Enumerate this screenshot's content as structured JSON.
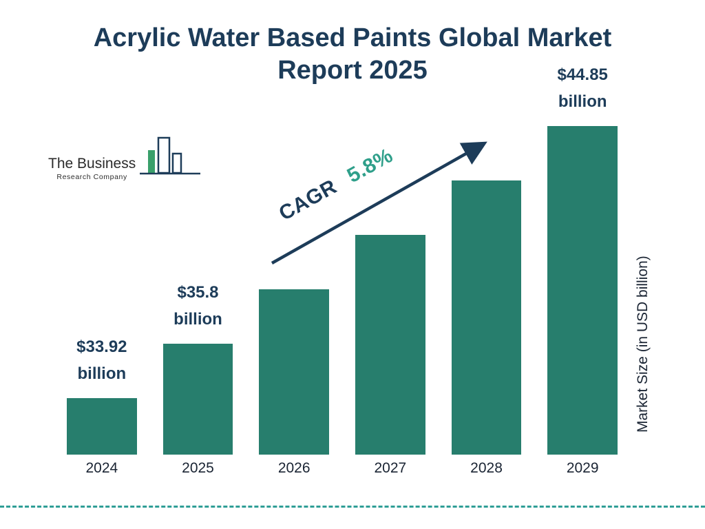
{
  "title": {
    "line1": "Acrylic Water Based Paints Global Market",
    "line2": "Report 2025"
  },
  "logo": {
    "line1": "The Business",
    "line2": "Research Company"
  },
  "cagr": {
    "label": "CAGR",
    "value": "5.8%"
  },
  "y_axis_label": "Market Size (in USD billion)",
  "colors": {
    "bar": "#277e6d",
    "navy": "#1d3c59",
    "teal_accent": "#2f9f8a",
    "divider": "#2f9e96"
  },
  "chart_data": {
    "type": "bar",
    "title": "Acrylic Water Based Paints Global Market Report 2025",
    "categories": [
      "2024",
      "2025",
      "2026",
      "2027",
      "2028",
      "2029"
    ],
    "values": [
      33.92,
      35.8,
      37.88,
      40.07,
      42.4,
      44.85
    ],
    "value_labels": [
      {
        "amount": "$33.92",
        "unit": "billion"
      },
      {
        "amount": "$35.8",
        "unit": "billion"
      },
      null,
      null,
      null,
      {
        "amount": "$44.85",
        "unit": "billion"
      }
    ],
    "xlabel": "",
    "ylabel": "Market Size (in USD billion)",
    "cagr": "5.8%",
    "legend": "none",
    "grid": false
  }
}
